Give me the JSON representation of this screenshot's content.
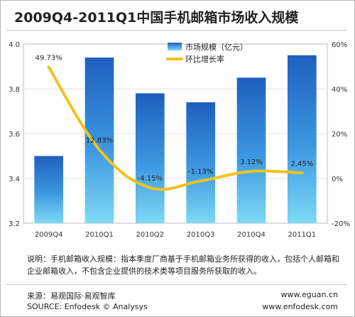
{
  "chart_data": {
    "type": "bar",
    "title": "2009Q4-2011Q1中国手机邮箱市场收入规模",
    "categories": [
      "2009Q4",
      "2010Q1",
      "2010Q2",
      "2010Q3",
      "2010Q4",
      "2011Q1"
    ],
    "series": [
      {
        "name": "市场规模（亿元）",
        "type": "bar",
        "axis": "left",
        "values": [
          3.5,
          3.94,
          3.78,
          3.74,
          3.85,
          3.95
        ]
      },
      {
        "name": "环比增长率",
        "type": "line",
        "axis": "right",
        "values": [
          49.73,
          12.83,
          -4.15,
          -1.13,
          3.12,
          2.45
        ],
        "labels": [
          "49.73%",
          "12.83%",
          "-4.15%",
          "-1.13%",
          "3.12%",
          "2.45%"
        ]
      }
    ],
    "y_left": {
      "ylim": [
        3.2,
        4.0
      ],
      "ticks": [
        "3.2",
        "3.4",
        "3.6",
        "3.8",
        "4.0"
      ]
    },
    "y_right": {
      "ylim": [
        -20,
        60
      ],
      "ticks": [
        "-20%",
        "0%",
        "20%",
        "40%",
        "60%"
      ]
    },
    "legend_placement": "top-right",
    "colors": {
      "bar_top": "#1f5fbf",
      "bar_bottom": "#7fd9f6",
      "line": "#f2c21b"
    }
  },
  "note": "说明：手机邮箱收入规模：指本季度厂商基于手机邮箱业务所获得的收入，包括个人邮箱和企业邮箱收入，不包含企业提供的技术类等项目服务所获取的收入。",
  "footer": {
    "source_cn": "来源：易观国际·易观智库",
    "source_en": "SOURCE: Enfodesk © Analysys",
    "site1": "www.eguan.cn",
    "site2": "www.enfodesk.com"
  }
}
